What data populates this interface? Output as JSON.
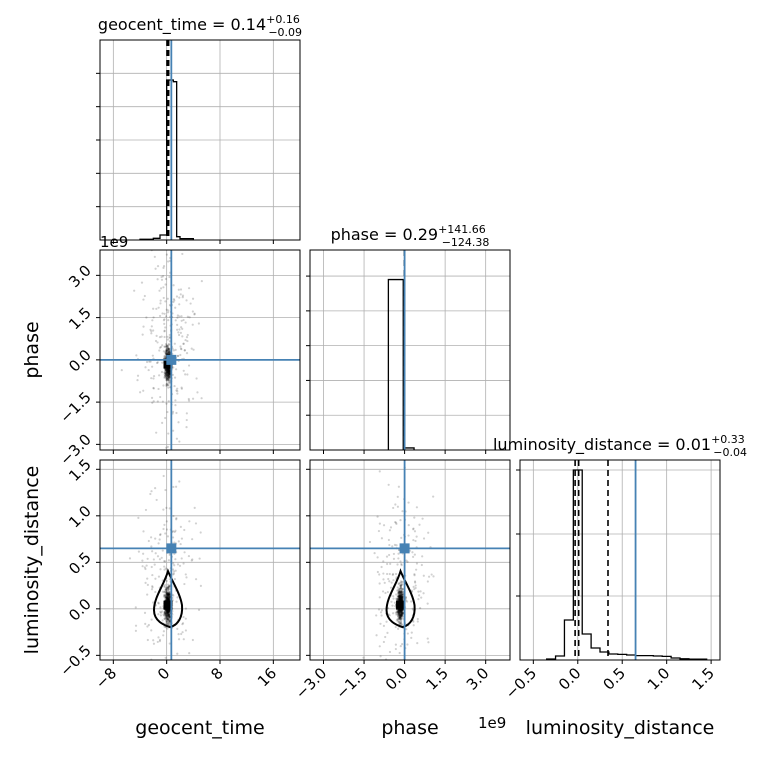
{
  "chart_data": {
    "type": "corner",
    "parameters": [
      "geocent_time",
      "phase",
      "luminosity_distance"
    ],
    "truth_color": "#4682b4",
    "grid": true,
    "panels": [
      {
        "id": "hist-geocent_time",
        "kind": "histogram",
        "title": {
          "param": "geocent_time",
          "median": "0.14",
          "plus": "+0.16",
          "minus": "−0.09"
        },
        "xlim": [
          -10,
          20
        ],
        "ylim": [
          0,
          1.2
        ],
        "y_tick_marks": [
          0.2,
          0.4,
          0.6,
          0.8,
          1.0
        ],
        "bins": [
          [
            -4,
            -2,
            0.004
          ],
          [
            -2,
            -1,
            0.01
          ],
          [
            -1,
            0,
            0.03
          ],
          [
            0,
            1,
            0.96
          ],
          [
            1,
            1.5,
            0.95
          ],
          [
            1.5,
            2,
            0.02
          ],
          [
            2,
            4,
            0.008
          ]
        ],
        "quantiles": [
          0.05,
          0.14,
          0.3
        ],
        "truth": 0.7
      },
      {
        "id": "hist-phase",
        "kind": "histogram",
        "title": {
          "param": "phase",
          "median": "0.29",
          "plus": "+141.66",
          "minus": "−124.38"
        },
        "xlim": [
          -3500000000.0,
          3900000000.0
        ],
        "ylim": [
          0,
          1.15
        ],
        "y_tick_marks": [
          0.2,
          0.4,
          0.6,
          0.8,
          1.0
        ],
        "bins": [
          [
            -600000000.0,
            -50000000.0,
            0.98
          ],
          [
            0.0,
            350000000.0,
            0.012
          ]
        ],
        "quantiles": [
          -124.09,
          0.29,
          141.95
        ],
        "truth": 0
      },
      {
        "id": "hist-luminosity_distance",
        "kind": "histogram",
        "title": {
          "param": "luminosity_distance",
          "median": "0.01",
          "plus": "+0.33",
          "minus": "−0.04"
        },
        "xlim": [
          -0.65,
          1.6
        ],
        "ylim": [
          0,
          1.0
        ],
        "y_tick_marks": [
          0.32,
          0.63,
          0.95
        ],
        "bins": [
          [
            -0.35,
            -0.25,
            0.005
          ],
          [
            -0.25,
            -0.15,
            0.02
          ],
          [
            -0.15,
            -0.05,
            0.2
          ],
          [
            -0.05,
            0.05,
            0.95
          ],
          [
            0.05,
            0.15,
            0.13
          ],
          [
            0.15,
            0.25,
            0.06
          ],
          [
            0.25,
            0.35,
            0.04
          ],
          [
            0.35,
            0.45,
            0.03
          ],
          [
            0.45,
            0.55,
            0.028
          ],
          [
            0.55,
            0.65,
            0.025
          ],
          [
            0.65,
            0.75,
            0.022
          ],
          [
            0.75,
            0.85,
            0.022
          ],
          [
            0.85,
            0.95,
            0.02
          ],
          [
            0.95,
            1.05,
            0.018
          ],
          [
            1.05,
            1.15,
            0.01
          ],
          [
            1.15,
            1.25,
            0.006
          ],
          [
            1.25,
            1.45,
            0.004
          ]
        ],
        "quantiles": [
          -0.03,
          0.01,
          0.34
        ],
        "truth": 0.65
      },
      {
        "id": "scatter-geocent_time-phase",
        "kind": "2d",
        "x": "geocent_time",
        "y": "phase",
        "xlim": [
          -10,
          20
        ],
        "ylim": [
          -3200000000.0,
          3900000000.0
        ],
        "truth": [
          0.7,
          0
        ],
        "peak": [
          0.2,
          -150000000.0
        ]
      },
      {
        "id": "scatter-geocent_time-luminosity_distance",
        "kind": "2d",
        "x": "geocent_time",
        "y": "luminosity_distance",
        "xlim": [
          -10,
          20
        ],
        "ylim": [
          -0.55,
          1.6
        ],
        "truth": [
          0.7,
          0.65
        ],
        "peak": [
          0.2,
          0.04
        ]
      },
      {
        "id": "scatter-phase-luminosity_distance",
        "kind": "2d",
        "x": "phase",
        "y": "luminosity_distance",
        "xlim": [
          -3500000000.0,
          3900000000.0
        ],
        "ylim": [
          -0.55,
          1.6
        ],
        "truth": [
          0,
          0.65
        ],
        "peak": [
          -150000000.0,
          0.04
        ]
      }
    ],
    "axes": {
      "geocent_time": {
        "label": "geocent_time",
        "ticks": [
          -8,
          0,
          8,
          16
        ],
        "tick_labels": [
          "−8",
          "0",
          "8",
          "16"
        ]
      },
      "phase_x": {
        "label": "phase",
        "ticks": [
          -3000000000.0,
          -1500000000.0,
          0,
          1500000000.0,
          3000000000.0
        ],
        "tick_labels": [
          "−3.0",
          "−1.5",
          "0.0",
          "1.5",
          "3.0"
        ],
        "offset": "1e9"
      },
      "phase_y": {
        "label": "phase",
        "ticks": [
          -3000000000.0,
          -1500000000.0,
          0,
          1500000000.0,
          3000000000.0
        ],
        "tick_labels": [
          "−3.0",
          "−1.5",
          "0.0",
          "1.5",
          "3.0"
        ],
        "offset": "1e9"
      },
      "luminosity_distance_x": {
        "label": "luminosity_distance",
        "ticks": [
          -0.5,
          0,
          0.5,
          1.0,
          1.5
        ],
        "tick_labels": [
          "−0.5",
          "0.0",
          "0.5",
          "1.0",
          "1.5"
        ]
      },
      "luminosity_distance_y": {
        "label": "luminosity_distance",
        "ticks": [
          -0.5,
          0,
          0.5,
          1.0,
          1.5
        ],
        "tick_labels": [
          "−0.5",
          "0.0",
          "0.5",
          "1.0",
          "1.5"
        ]
      }
    }
  }
}
